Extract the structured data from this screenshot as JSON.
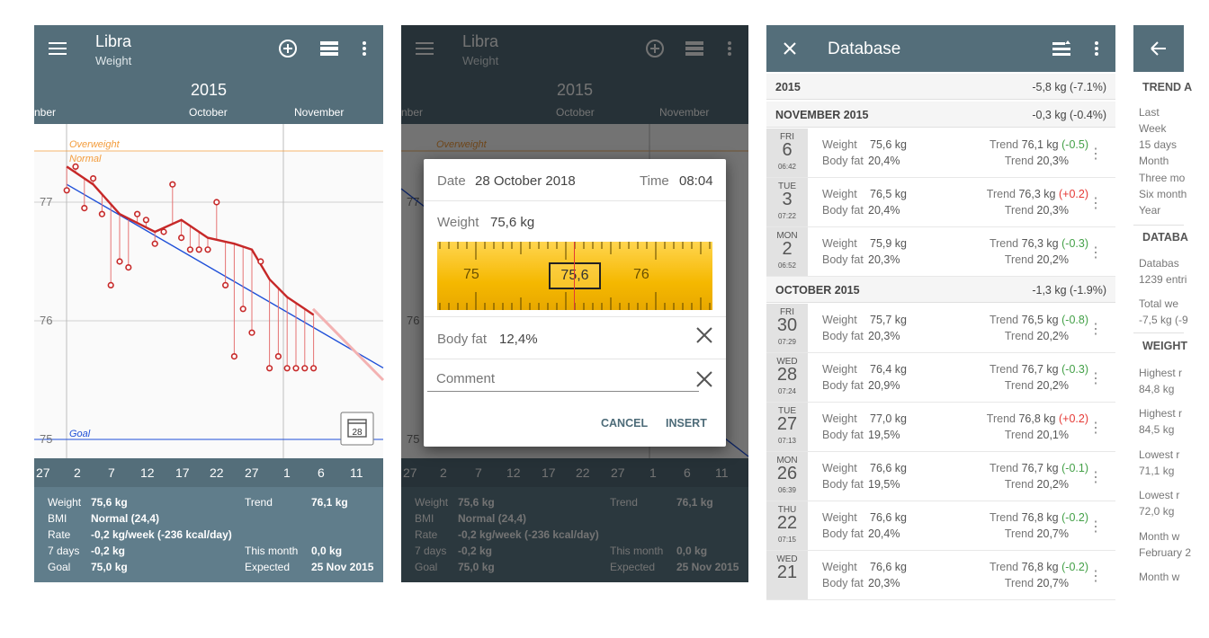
{
  "colors": {
    "primary": "#546e7a",
    "accent": "#f5b800",
    "trend_line": "#c62828",
    "goal_line": "#1e4fd8",
    "overweight": "#f39c3c",
    "up": "#e53935",
    "down": "#43a047"
  },
  "app": {
    "title": "Libra",
    "subtitle": "Weight",
    "year": "2015",
    "months": [
      "nber",
      "October",
      "November"
    ],
    "overweight_label": "Overweight",
    "normal_label": "Normal",
    "goal_label": "Goal",
    "y_ticks": [
      "77",
      "76",
      "75"
    ],
    "calendar_day": "28",
    "days": [
      "27",
      "2",
      "7",
      "12",
      "17",
      "22",
      "27",
      "1",
      "6",
      "11"
    ],
    "stats": {
      "weight_label": "Weight",
      "weight": "75,6 kg",
      "trend_label": "Trend",
      "trend": "76,1 kg",
      "bmi_label": "BMI",
      "bmi": "Normal (24,4)",
      "rate_label": "Rate",
      "rate": "-0,2 kg/week (-236 kcal/day)",
      "days7_label": "7 days",
      "days7": "-0,2 kg",
      "month_label": "This month",
      "month": "0,0 kg",
      "goal_label": "Goal",
      "goal": "75,0 kg",
      "expected_label": "Expected",
      "expected": "25 Nov 2015"
    }
  },
  "chart_data": {
    "type": "line",
    "xlabel": "",
    "ylabel": "",
    "ylim": [
      74.9,
      77.6
    ],
    "x_ticks": [
      "27",
      "2",
      "7",
      "12",
      "17",
      "22",
      "27",
      "1",
      "6",
      "11"
    ],
    "goal": 75.0,
    "series": [
      {
        "kind": "measurements",
        "x": [
          -1,
          0,
          1,
          2,
          3,
          4,
          5,
          6,
          7,
          8,
          9,
          10,
          11,
          12,
          13,
          14,
          15,
          16,
          17,
          18,
          19,
          20,
          21,
          22,
          23,
          24,
          25,
          26,
          27
        ],
        "values": [
          77.1,
          77.3,
          76.95,
          77.2,
          76.9,
          76.3,
          76.5,
          76.45,
          76.9,
          76.85,
          76.65,
          76.75,
          77.15,
          76.7,
          76.6,
          76.6,
          76.6,
          77.0,
          76.3,
          75.7,
          76.1,
          75.9,
          76.5,
          75.6,
          75.7,
          75.6,
          75.6,
          75.6,
          75.6
        ]
      },
      {
        "kind": "trend",
        "x": [
          -1,
          2,
          5,
          9,
          12,
          15,
          18,
          20,
          22,
          24,
          26,
          27
        ],
        "values": [
          77.3,
          77.15,
          76.9,
          76.75,
          76.85,
          76.7,
          76.65,
          76.6,
          76.35,
          76.2,
          76.1,
          76.05
        ]
      },
      {
        "kind": "linear_fit",
        "x": [
          -1,
          28
        ],
        "values": [
          77.15,
          75.9
        ]
      }
    ]
  },
  "dialog": {
    "date_label": "Date",
    "date": "28 October 2018",
    "time_label": "Time",
    "time": "08:04",
    "weight_label": "Weight",
    "weight": "75,6 kg",
    "ruler_left": "75",
    "ruler_mid": "75,6",
    "ruler_right": "76",
    "bodyfat_label": "Body fat",
    "bodyfat": "12,4%",
    "comment_placeholder": "Comment",
    "cancel": "CANCEL",
    "insert": "INSERT"
  },
  "database": {
    "title": "Database",
    "groups": [
      {
        "label": "2015",
        "delta": "-5,8 kg (-7.1%)"
      },
      {
        "label": "NOVEMBER 2015",
        "delta": "-0,3 kg (-0.4%)"
      },
      {
        "label": "OCTOBER 2015",
        "delta": "-1,3 kg (-1.9%)"
      }
    ],
    "entries": [
      {
        "dow": "FRI",
        "day": "6",
        "time": "06:42",
        "weight_label": "Weight",
        "weight": "75,6 kg",
        "fat_label": "Body fat",
        "fat": "20,4%",
        "trend_label": "Trend",
        "trend": "76,1 kg",
        "delta": "(-0.5)",
        "dir": "down",
        "tfat_label": "Trend",
        "tfat": "20,3%"
      },
      {
        "dow": "TUE",
        "day": "3",
        "time": "07:22",
        "weight_label": "Weight",
        "weight": "76,5 kg",
        "fat_label": "Body fat",
        "fat": "20,4%",
        "trend_label": "Trend",
        "trend": "76,3 kg",
        "delta": "(+0.2)",
        "dir": "up",
        "tfat_label": "Trend",
        "tfat": "20,3%"
      },
      {
        "dow": "MON",
        "day": "2",
        "time": "06:52",
        "weight_label": "Weight",
        "weight": "75,9 kg",
        "fat_label": "Body fat",
        "fat": "20,3%",
        "trend_label": "Trend",
        "trend": "76,3 kg",
        "delta": "(-0.3)",
        "dir": "down",
        "tfat_label": "Trend",
        "tfat": "20,2%"
      },
      {
        "dow": "FRI",
        "day": "30",
        "time": "07:29",
        "weight_label": "Weight",
        "weight": "75,7 kg",
        "fat_label": "Body fat",
        "fat": "20,3%",
        "trend_label": "Trend",
        "trend": "76,5 kg",
        "delta": "(-0.8)",
        "dir": "down",
        "tfat_label": "Trend",
        "tfat": "20,2%"
      },
      {
        "dow": "WED",
        "day": "28",
        "time": "07:24",
        "weight_label": "Weight",
        "weight": "76,4 kg",
        "fat_label": "Body fat",
        "fat": "20,9%",
        "trend_label": "Trend",
        "trend": "76,7 kg",
        "delta": "(-0.3)",
        "dir": "down",
        "tfat_label": "Trend",
        "tfat": "20,2%"
      },
      {
        "dow": "TUE",
        "day": "27",
        "time": "07:13",
        "weight_label": "Weight",
        "weight": "77,0 kg",
        "fat_label": "Body fat",
        "fat": "19,5%",
        "trend_label": "Trend",
        "trend": "76,8 kg",
        "delta": "(+0.2)",
        "dir": "up",
        "tfat_label": "Trend",
        "tfat": "20,1%"
      },
      {
        "dow": "MON",
        "day": "26",
        "time": "06:39",
        "weight_label": "Weight",
        "weight": "76,6 kg",
        "fat_label": "Body fat",
        "fat": "19,5%",
        "trend_label": "Trend",
        "trend": "76,7 kg",
        "delta": "(-0.1)",
        "dir": "down",
        "tfat_label": "Trend",
        "tfat": "20,2%"
      },
      {
        "dow": "THU",
        "day": "22",
        "time": "07:15",
        "weight_label": "Weight",
        "weight": "76,6 kg",
        "fat_label": "Body fat",
        "fat": "20,4%",
        "trend_label": "Trend",
        "trend": "76,8 kg",
        "delta": "(-0.2)",
        "dir": "down",
        "tfat_label": "Trend",
        "tfat": "20,7%"
      },
      {
        "dow": "WED",
        "day": "21",
        "time": "",
        "weight_label": "Weight",
        "weight": "76,6 kg",
        "fat_label": "Body fat",
        "fat": "20,3%",
        "trend_label": "Trend",
        "trend": "76,8 kg",
        "delta": "(-0.2)",
        "dir": "down",
        "tfat_label": "Trend",
        "tfat": "20,7%"
      }
    ]
  },
  "stats_panel": {
    "trend_header": "TREND A",
    "trend_items": [
      "Last",
      "Week",
      "15 days",
      "Month",
      "Three mo",
      "Six month",
      "Year"
    ],
    "db_header": "DATABA",
    "db_items": [
      "Databas",
      "1239 entri",
      "Total we",
      "-7,5 kg (-9"
    ],
    "weight_header": "WEIGHT",
    "weight_items": [
      "Highest r",
      "84,8 kg",
      "Highest r",
      "84,5 kg",
      "Lowest r",
      "71,1 kg",
      "Lowest r",
      "72,0 kg",
      "Month w",
      "February 2",
      "Month w"
    ]
  }
}
